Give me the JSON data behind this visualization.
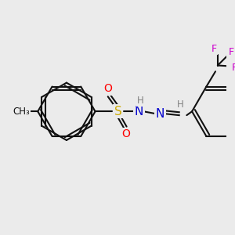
{
  "bg_color": "#ebebeb",
  "atom_colors": {
    "S": "#ccaa00",
    "O": "#ff0000",
    "N": "#0000cc",
    "H": "#808080",
    "F": "#cc00cc",
    "C": "#111111"
  },
  "bond_color": "#111111",
  "bond_width": 1.5
}
